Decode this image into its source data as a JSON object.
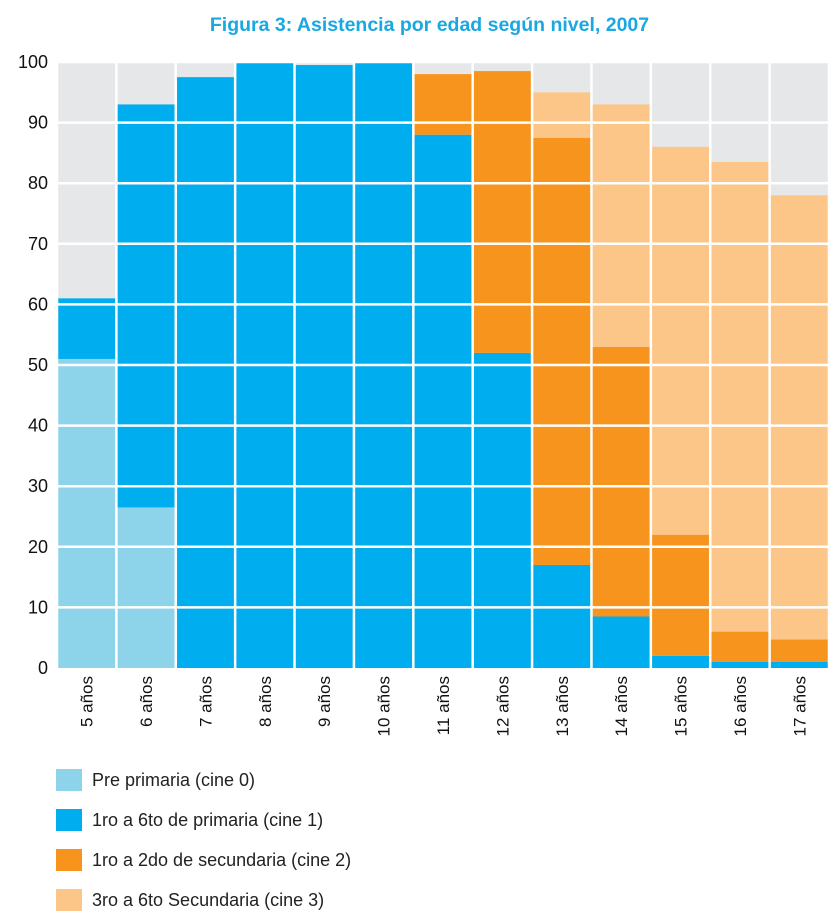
{
  "chart_data": {
    "type": "bar",
    "stacked": true,
    "title": "Figura 3: Asistencia por edad según nivel, 2007",
    "categories": [
      "5 años",
      "6 años",
      "7 años",
      "8 años",
      "9 años",
      "10 años",
      "11 años",
      "12 años",
      "13 años",
      "14 años",
      "15 años",
      "16 años",
      "17 años"
    ],
    "ylim": [
      0,
      100
    ],
    "yticks": [
      0,
      10,
      20,
      30,
      40,
      50,
      60,
      70,
      80,
      90,
      100
    ],
    "grid": true,
    "legend_position": "bottom",
    "series": [
      {
        "name": "Pre primaria (cine 0)",
        "color": "#8dd3ea",
        "values": [
          51,
          26.5,
          0,
          0,
          0,
          0,
          0,
          0,
          0,
          0,
          0,
          0,
          0
        ]
      },
      {
        "name": "1ro a 6to de primaria (cine 1)",
        "color": "#00aeef",
        "values": [
          10,
          66.5,
          97.5,
          100,
          99.5,
          100,
          88,
          52,
          17,
          8.5,
          2,
          1,
          1
        ]
      },
      {
        "name": "1ro a 2do de secundaria (cine 2)",
        "color": "#f7941d",
        "values": [
          0,
          0,
          0,
          0,
          0,
          0,
          10,
          46.5,
          70.5,
          44.5,
          20,
          5,
          3.7
        ]
      },
      {
        "name": "3ro a 6to Secundaria (cine 3)",
        "color": "#fdc689",
        "values": [
          0,
          0,
          0,
          0,
          0,
          0,
          0,
          0,
          7.5,
          40,
          64,
          77.5,
          73.3
        ]
      }
    ]
  }
}
